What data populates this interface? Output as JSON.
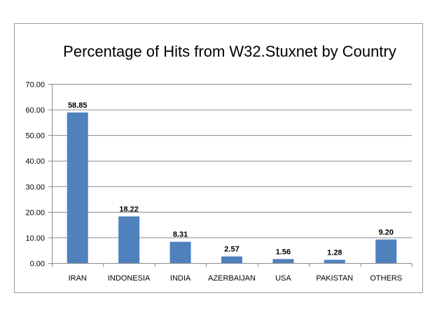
{
  "chart_data": {
    "type": "bar",
    "title": "Percentage of Hits from W32.Stuxnet by Country",
    "xlabel": "",
    "ylabel": "",
    "categories": [
      "IRAN",
      "INDONESIA",
      "INDIA",
      "AZERBAIJAN",
      "USA",
      "PAKISTAN",
      "OTHERS"
    ],
    "values": [
      58.85,
      18.22,
      8.31,
      2.57,
      1.56,
      1.28,
      9.2
    ],
    "data_labels": [
      "58.85",
      "18.22",
      "8.31",
      "2.57",
      "1.56",
      "1.28",
      "9.20"
    ],
    "ylim": [
      0,
      70
    ],
    "yticks": [
      0,
      10,
      20,
      30,
      40,
      50,
      60,
      70
    ],
    "ytick_labels": [
      "0.00",
      "10.00",
      "20.00",
      "30.00",
      "40.00",
      "50.00",
      "60.00",
      "70.00"
    ],
    "grid": true,
    "legend": "none",
    "bar_color": "#4f81bd"
  }
}
